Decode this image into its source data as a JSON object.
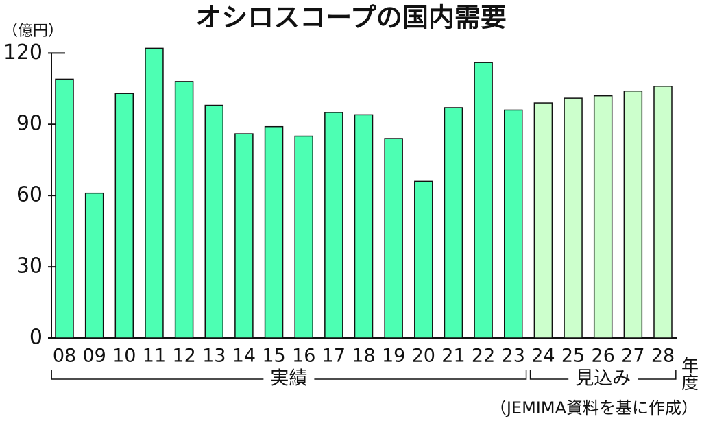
{
  "chart_data": {
    "type": "bar",
    "title": "オシロスコープの国内需要",
    "y_label": "（億円）",
    "x_label": "年度",
    "source": "（JEMIMA資料を基に作成）",
    "categories": [
      "08",
      "09",
      "10",
      "11",
      "12",
      "13",
      "14",
      "15",
      "16",
      "17",
      "18",
      "19",
      "20",
      "21",
      "22",
      "23",
      "24",
      "25",
      "26",
      "27",
      "28"
    ],
    "series": [
      {
        "name": "実績",
        "color": "#4dffb3",
        "values": [
          109,
          61,
          103,
          122,
          108,
          98,
          86,
          89,
          85,
          95,
          94,
          84,
          66,
          97,
          116,
          96,
          null,
          null,
          null,
          null,
          null
        ]
      },
      {
        "name": "見込み",
        "color": "#ccffcc",
        "values": [
          null,
          null,
          null,
          null,
          null,
          null,
          null,
          null,
          null,
          null,
          null,
          null,
          null,
          null,
          null,
          null,
          99,
          101,
          102,
          104,
          106
        ]
      }
    ],
    "ylim": [
      0,
      125
    ],
    "yticks": [
      0,
      30,
      60,
      90,
      120
    ]
  }
}
